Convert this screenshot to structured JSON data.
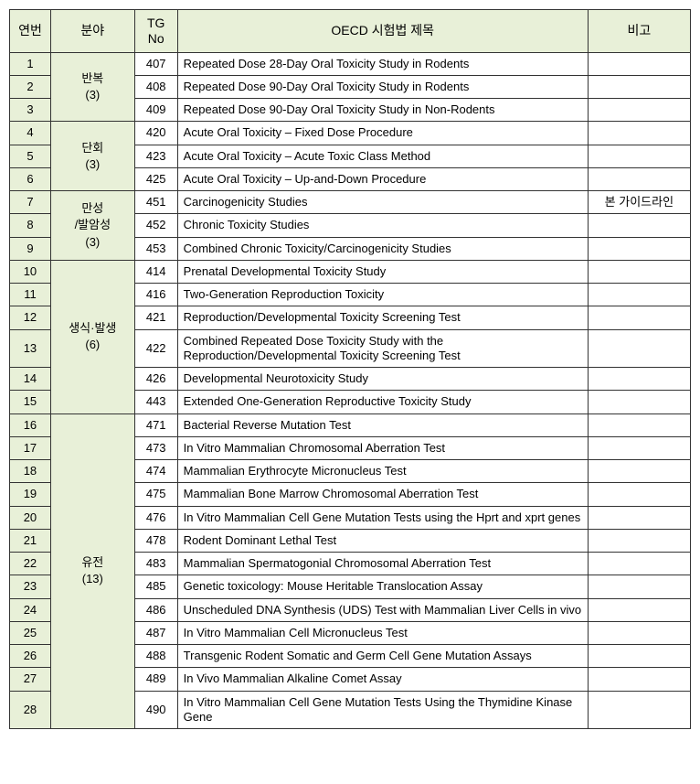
{
  "columns": {
    "c1": "연번",
    "c2": "분야",
    "c3_l1": "TG",
    "c3_l2": "No",
    "c4": "OECD 시험법 제목",
    "c5": "비고"
  },
  "col_widths": {
    "c1": 44,
    "c2": 90,
    "c3": 46,
    "c4": 440,
    "c5": 110
  },
  "header_bg": "#e8f0d8",
  "border_color": "#333333",
  "font_size_header": 14,
  "font_size_body": 13,
  "categories": [
    {
      "label_l1": "반복",
      "label_l2": "(3)",
      "rowspan": 3
    },
    {
      "label_l1": "단회",
      "label_l2": "(3)",
      "rowspan": 3
    },
    {
      "label_l1": "만성",
      "label_l2": "/발암성",
      "label_l3": "(3)",
      "rowspan": 3
    },
    {
      "label_l1": "생식·발생",
      "label_l2": "(6)",
      "rowspan": 6
    },
    {
      "label_l1": "유전",
      "label_l2": "(13)",
      "rowspan": 13
    }
  ],
  "rows": [
    {
      "n": "1",
      "cat": 0,
      "tg": "407",
      "title": "Repeated Dose 28-Day Oral Toxicity Study in Rodents",
      "note": ""
    },
    {
      "n": "2",
      "tg": "408",
      "title": "Repeated Dose 90-Day Oral Toxicity Study in Rodents",
      "note": ""
    },
    {
      "n": "3",
      "tg": "409",
      "title": "Repeated Dose 90-Day Oral Toxicity Study in Non-Rodents",
      "note": ""
    },
    {
      "n": "4",
      "cat": 1,
      "tg": "420",
      "title": "Acute Oral Toxicity – Fixed Dose Procedure",
      "note": ""
    },
    {
      "n": "5",
      "tg": "423",
      "title": "Acute Oral Toxicity – Acute Toxic Class Method",
      "note": ""
    },
    {
      "n": "6",
      "tg": "425",
      "title": "Acute Oral Toxicity – Up-and-Down Procedure",
      "note": ""
    },
    {
      "n": "7",
      "cat": 2,
      "tg": "451",
      "title": "Carcinogenicity Studies",
      "note": "본 가이드라인"
    },
    {
      "n": "8",
      "tg": "452",
      "title": "Chronic Toxicity Studies",
      "note": ""
    },
    {
      "n": "9",
      "tg": "453",
      "title": "Combined Chronic Toxicity/Carcinogenicity Studies",
      "note": ""
    },
    {
      "n": "10",
      "cat": 3,
      "tg": "414",
      "title": "Prenatal Developmental Toxicity Study",
      "note": ""
    },
    {
      "n": "11",
      "tg": "416",
      "title": "Two-Generation Reproduction Toxicity",
      "note": ""
    },
    {
      "n": "12",
      "tg": "421",
      "title": "Reproduction/Developmental Toxicity Screening Test",
      "note": ""
    },
    {
      "n": "13",
      "tg": "422",
      "title": "Combined Repeated Dose Toxicity Study with the Reproduction/Developmental Toxicity Screening Test",
      "note": ""
    },
    {
      "n": "14",
      "tg": "426",
      "title": "Developmental Neurotoxicity Study",
      "note": ""
    },
    {
      "n": "15",
      "tg": "443",
      "title": "Extended One-Generation Reproductive Toxicity Study",
      "note": ""
    },
    {
      "n": "16",
      "cat": 4,
      "tg": "471",
      "title": "Bacterial Reverse Mutation Test",
      "note": ""
    },
    {
      "n": "17",
      "tg": "473",
      "title": "In Vitro Mammalian Chromosomal Aberration Test",
      "note": ""
    },
    {
      "n": "18",
      "tg": "474",
      "title": "Mammalian Erythrocyte Micronucleus Test",
      "note": ""
    },
    {
      "n": "19",
      "tg": "475",
      "title": "Mammalian Bone Marrow Chromosomal Aberration Test",
      "note": ""
    },
    {
      "n": "20",
      "tg": "476",
      "title": "In Vitro Mammalian Cell Gene Mutation Tests using the Hprt and xprt genes",
      "note": ""
    },
    {
      "n": "21",
      "tg": "478",
      "title": "Rodent Dominant Lethal Test",
      "note": ""
    },
    {
      "n": "22",
      "tg": "483",
      "title": "Mammalian Spermatogonial Chromosomal Aberration Test",
      "note": ""
    },
    {
      "n": "23",
      "tg": "485",
      "title": "Genetic toxicology: Mouse Heritable Translocation Assay",
      "note": ""
    },
    {
      "n": "24",
      "tg": "486",
      "title": "Unscheduled DNA Synthesis (UDS) Test with Mammalian Liver Cells in vivo",
      "note": ""
    },
    {
      "n": "25",
      "tg": "487",
      "title": "In Vitro Mammalian Cell Micronucleus Test",
      "note": ""
    },
    {
      "n": "26",
      "tg": "488",
      "title": "Transgenic Rodent Somatic and Germ Cell Gene Mutation Assays",
      "note": ""
    },
    {
      "n": "27",
      "tg": "489",
      "title": "In Vivo Mammalian Alkaline Comet Assay",
      "note": ""
    },
    {
      "n": "28",
      "tg": "490",
      "title": "In Vitro Mammalian Cell Gene Mutation Tests Using the Thymidine Kinase Gene",
      "note": ""
    }
  ]
}
